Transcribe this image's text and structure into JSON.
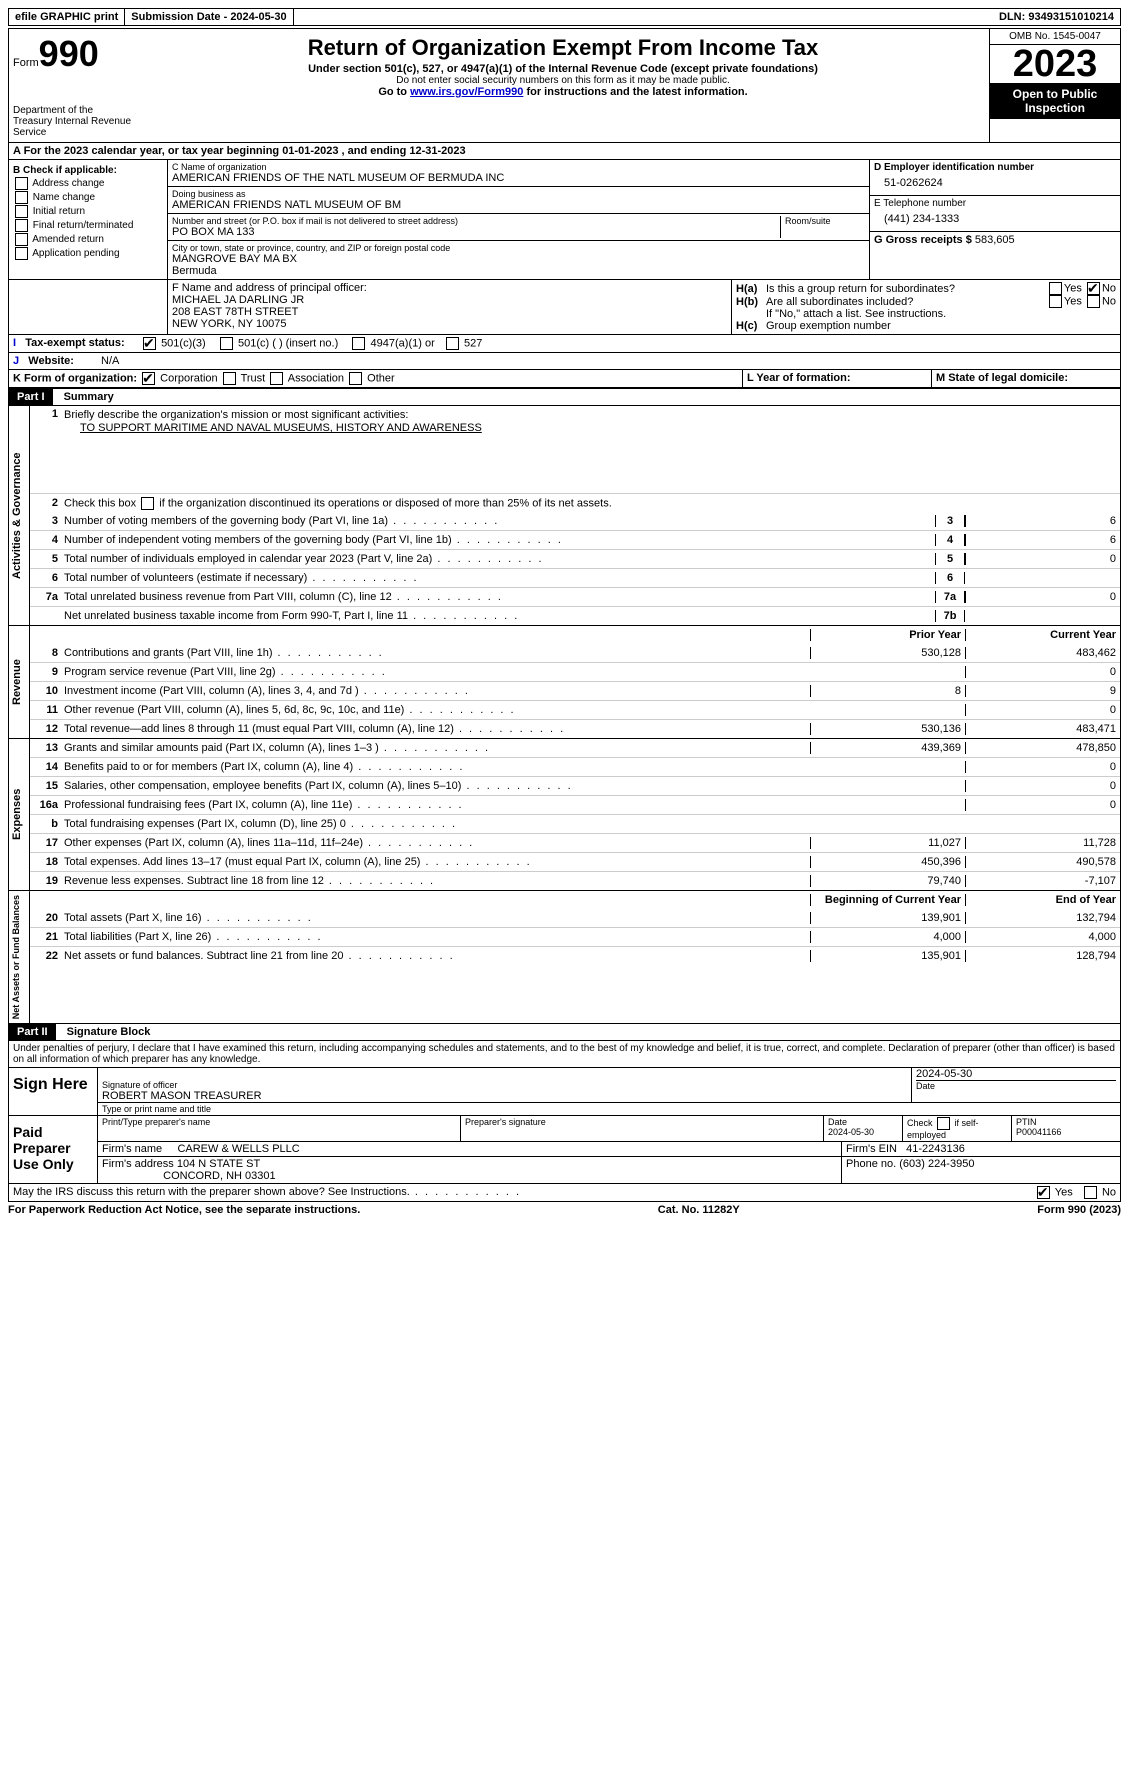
{
  "top": {
    "efile": "efile GRAPHIC print",
    "submission": "Submission Date - 2024-05-30",
    "dln": "DLN: 93493151010214"
  },
  "header": {
    "form_word": "Form",
    "form_num": "990",
    "dept": "Department of the Treasury Internal Revenue Service",
    "title": "Return of Organization Exempt From Income Tax",
    "sub": "Under section 501(c), 527, or 4947(a)(1) of the Internal Revenue Code (except private foundations)",
    "ssn": "Do not enter social security numbers on this form as it may be made public.",
    "goto": "Go to www.irs.gov/Form990 for instructions and the latest information.",
    "goto_link": "www.irs.gov/Form990",
    "omb": "OMB No. 1545-0047",
    "year": "2023",
    "open": "Open to Public Inspection"
  },
  "section_a": "A  For the 2023 calendar year, or tax year beginning 01-01-2023    , and ending 12-31-2023",
  "col_b": {
    "title": "B Check if applicable:",
    "items": [
      "Address change",
      "Name change",
      "Initial return",
      "Final return/terminated",
      "Amended return",
      "Application pending"
    ]
  },
  "col_c": {
    "name_lbl": "C Name of organization",
    "name": "AMERICAN FRIENDS OF THE NATL MUSEUM OF BERMUDA INC",
    "dba_lbl": "Doing business as",
    "dba": "AMERICAN FRIENDS NATL MUSEUM OF BM",
    "addr_lbl": "Number and street (or P.O. box if mail is not delivered to street address)",
    "addr": "PO BOX MA 133",
    "room_lbl": "Room/suite",
    "city_lbl": "City or town, state or province, country, and ZIP or foreign postal code",
    "city": "MANGROVE BAY  MA BX",
    "country": "Bermuda"
  },
  "col_d": {
    "ein_lbl": "D Employer identification number",
    "ein": "51-0262624",
    "phone_lbl": "E Telephone number",
    "phone": "(441) 234-1333",
    "gross_lbl": "G Gross receipts $",
    "gross": "583,605"
  },
  "officer": {
    "lbl": "F  Name and address of principal officer:",
    "name": "MICHAEL JA DARLING JR",
    "addr1": "208 EAST 78TH STREET",
    "addr2": "NEW YORK, NY  10075"
  },
  "h": {
    "ha": "Is this a group return for subordinates?",
    "hb": "Are all subordinates included?",
    "hb_note": "If \"No,\" attach a list. See instructions.",
    "hc": "Group exemption number",
    "yes": "Yes",
    "no": "No"
  },
  "status": {
    "lbl": "Tax-exempt status:",
    "c3": "501(c)(3)",
    "c": "501(c) (  ) (insert no.)",
    "a1": "4947(a)(1) or",
    "s527": "527"
  },
  "website": {
    "lbl": "Website:",
    "val": "N/A"
  },
  "form_org": {
    "lbl": "K Form of organization:",
    "corp": "Corporation",
    "trust": "Trust",
    "assoc": "Association",
    "other": "Other"
  },
  "year_formation": "L Year of formation:",
  "state_domicile": "M State of legal domicile:",
  "part1": {
    "header": "Part I",
    "title": "Summary",
    "line1_lbl": "Briefly describe the organization's mission or most significant activities:",
    "mission": "TO SUPPORT MARITIME AND NAVAL MUSEUMS, HISTORY AND AWARENESS",
    "line2": "Check this box        if the organization discontinued its operations or disposed of more than 25% of its net assets.",
    "lines": [
      {
        "n": "3",
        "d": "Number of voting members of the governing body (Part VI, line 1a)",
        "b": "3",
        "v": "6"
      },
      {
        "n": "4",
        "d": "Number of independent voting members of the governing body (Part VI, line 1b)",
        "b": "4",
        "v": "6"
      },
      {
        "n": "5",
        "d": "Total number of individuals employed in calendar year 2023 (Part V, line 2a)",
        "b": "5",
        "v": "0"
      },
      {
        "n": "6",
        "d": "Total number of volunteers (estimate if necessary)",
        "b": "6",
        "v": ""
      },
      {
        "n": "7a",
        "d": "Total unrelated business revenue from Part VIII, column (C), line 12",
        "b": "7a",
        "v": "0"
      },
      {
        "n": "",
        "d": "Net unrelated business taxable income from Form 990-T, Part I, line 11",
        "b": "7b",
        "v": ""
      }
    ],
    "prior_year": "Prior Year",
    "current_year": "Current Year",
    "rev": [
      {
        "n": "8",
        "d": "Contributions and grants (Part VIII, line 1h)",
        "p": "530,128",
        "c": "483,462"
      },
      {
        "n": "9",
        "d": "Program service revenue (Part VIII, line 2g)",
        "p": "",
        "c": "0"
      },
      {
        "n": "10",
        "d": "Investment income (Part VIII, column (A), lines 3, 4, and 7d )",
        "p": "8",
        "c": "9"
      },
      {
        "n": "11",
        "d": "Other revenue (Part VIII, column (A), lines 5, 6d, 8c, 9c, 10c, and 11e)",
        "p": "",
        "c": "0"
      },
      {
        "n": "12",
        "d": "Total revenue—add lines 8 through 11 (must equal Part VIII, column (A), line 12)",
        "p": "530,136",
        "c": "483,471"
      }
    ],
    "exp": [
      {
        "n": "13",
        "d": "Grants and similar amounts paid (Part IX, column (A), lines 1–3 )",
        "p": "439,369",
        "c": "478,850"
      },
      {
        "n": "14",
        "d": "Benefits paid to or for members (Part IX, column (A), line 4)",
        "p": "",
        "c": "0"
      },
      {
        "n": "15",
        "d": "Salaries, other compensation, employee benefits (Part IX, column (A), lines 5–10)",
        "p": "",
        "c": "0"
      },
      {
        "n": "16a",
        "d": "Professional fundraising fees (Part IX, column (A), line 11e)",
        "p": "",
        "c": "0"
      },
      {
        "n": "b",
        "d": "Total fundraising expenses (Part IX, column (D), line 25) 0",
        "p": "shaded",
        "c": "shaded"
      },
      {
        "n": "17",
        "d": "Other expenses (Part IX, column (A), lines 11a–11d, 11f–24e)",
        "p": "11,027",
        "c": "11,728"
      },
      {
        "n": "18",
        "d": "Total expenses. Add lines 13–17 (must equal Part IX, column (A), line 25)",
        "p": "450,396",
        "c": "490,578"
      },
      {
        "n": "19",
        "d": "Revenue less expenses. Subtract line 18 from line 12",
        "p": "79,740",
        "c": "-7,107"
      }
    ],
    "begin_year": "Beginning of Current Year",
    "end_year": "End of Year",
    "net": [
      {
        "n": "20",
        "d": "Total assets (Part X, line 16)",
        "p": "139,901",
        "c": "132,794"
      },
      {
        "n": "21",
        "d": "Total liabilities (Part X, line 26)",
        "p": "4,000",
        "c": "4,000"
      },
      {
        "n": "22",
        "d": "Net assets or fund balances. Subtract line 21 from line 20",
        "p": "135,901",
        "c": "128,794"
      }
    ]
  },
  "vert": {
    "gov": "Activities & Governance",
    "rev": "Revenue",
    "exp": "Expenses",
    "net": "Net Assets or Fund Balances"
  },
  "part2": {
    "header": "Part II",
    "title": "Signature Block",
    "decl": "Under penalties of perjury, I declare that I have examined this return, including accompanying schedules and statements, and to the best of my knowledge and belief, it is true, correct, and complete. Declaration of preparer (other than officer) is based on all information of which preparer has any knowledge."
  },
  "sign": {
    "here": "Sign Here",
    "sig_lbl": "Signature of officer",
    "officer": "ROBERT MASON  TREASURER",
    "type_lbl": "Type or print name and title",
    "date_lbl": "Date",
    "date": "2024-05-30"
  },
  "paid": {
    "lbl": "Paid Preparer Use Only",
    "name_lbl": "Print/Type preparer's name",
    "sig_lbl": "Preparer's signature",
    "date_lbl": "Date",
    "date": "2024-05-30",
    "check_lbl": "Check         if self-employed",
    "ptin_lbl": "PTIN",
    "ptin": "P00041166",
    "firm_lbl": "Firm's name",
    "firm": "CAREW & WELLS PLLC",
    "ein_lbl": "Firm's EIN",
    "ein": "41-2243136",
    "addr_lbl": "Firm's address",
    "addr1": "104 N STATE ST",
    "addr2": "CONCORD, NH  03301",
    "phone_lbl": "Phone no.",
    "phone": "(603) 224-3950"
  },
  "discuss": "May the IRS discuss this return with the preparer shown above? See Instructions.",
  "footer": {
    "left": "For Paperwork Reduction Act Notice, see the separate instructions.",
    "mid": "Cat. No. 11282Y",
    "right": "Form 990 (2023)"
  }
}
